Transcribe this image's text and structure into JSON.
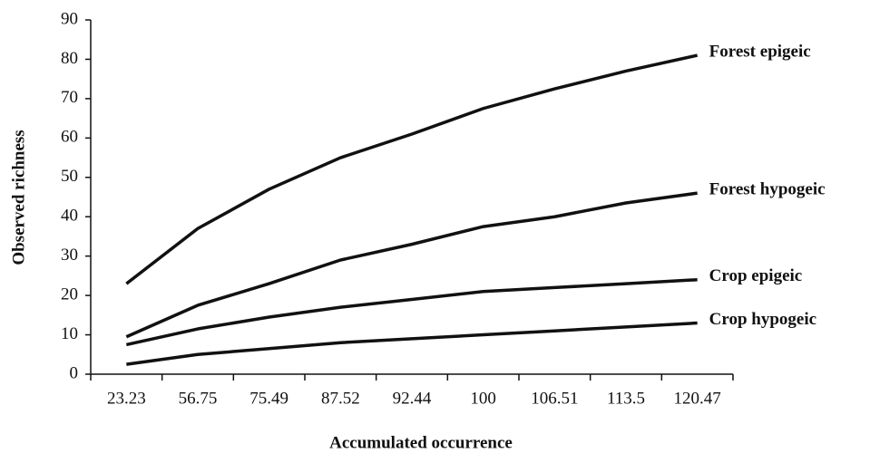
{
  "chart_data": {
    "type": "line",
    "x_label": "Accumulated occurrence",
    "y_label": "Observed richness",
    "categories": [
      "23.23",
      "56.75",
      "75.49",
      "87.52",
      "92.44",
      "100",
      "106.51",
      "113.5",
      "120.47"
    ],
    "series": [
      {
        "name": "Forest epigeic",
        "color": "#111111",
        "values": [
          23,
          37,
          47,
          55,
          61,
          67.5,
          72.5,
          77,
          81
        ]
      },
      {
        "name": "Forest hypogeic",
        "color": "#111111",
        "values": [
          9.5,
          17.5,
          23,
          29,
          33,
          37.5,
          40,
          43.5,
          46
        ]
      },
      {
        "name": "Crop epigeic",
        "color": "#111111",
        "values": [
          7.5,
          11.5,
          14.5,
          17,
          19,
          21,
          22,
          23,
          24
        ]
      },
      {
        "name": "Crop hypogeic",
        "color": "#111111",
        "values": [
          2.5,
          5,
          6.5,
          8,
          9,
          10,
          11,
          12,
          13
        ]
      }
    ],
    "ylim": [
      0,
      90
    ],
    "yticks": [
      0,
      10,
      20,
      30,
      40,
      50,
      60,
      70,
      80,
      90
    ],
    "grid": false
  }
}
